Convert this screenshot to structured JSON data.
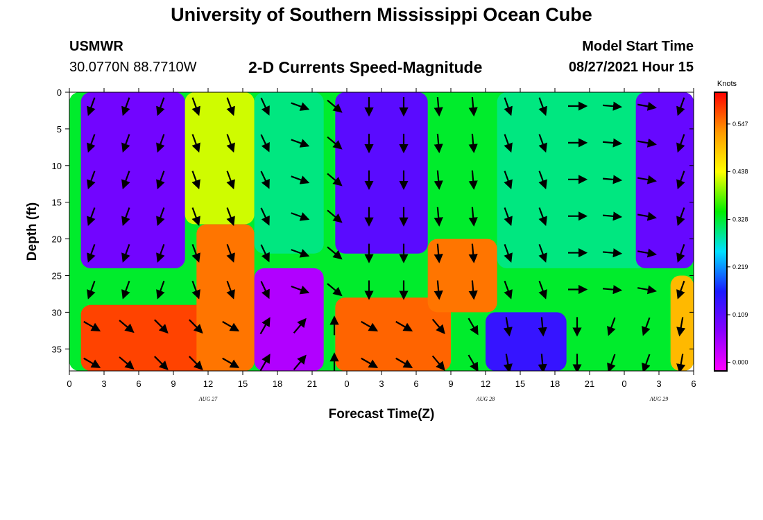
{
  "header": {
    "title": "University of Southern Mississippi Ocean Cube",
    "station_id": "USMWR",
    "coords": "30.0770N  88.7710W",
    "subtitle": "2-D Currents Speed-Magnitude",
    "model_start_label": "Model Start Time",
    "model_start_value": "08/27/2021 Hour 15"
  },
  "footer": {
    "title": "University of Southern Mississippi Ocean Cube"
  },
  "chart_data": {
    "type": "heatmap",
    "xlabel": "Forecast Time(Z)",
    "ylabel": "Depth (ft)",
    "x_range_hours": [
      0,
      54
    ],
    "x_tick_labels": [
      "0",
      "3",
      "6",
      "9",
      "12",
      "15",
      "18",
      "21",
      "0",
      "3",
      "6",
      "9",
      "12",
      "15",
      "18",
      "21",
      "0",
      "3",
      "6"
    ],
    "date_labels": [
      {
        "text": "AUG 27",
        "at_hour": 12
      },
      {
        "text": "AUG 28",
        "at_hour": 36
      },
      {
        "text": "AUG 29",
        "at_hour": 51
      }
    ],
    "y_range": [
      0,
      38
    ],
    "y_ticks": [
      0,
      5,
      10,
      15,
      20,
      25,
      30,
      35
    ],
    "y_inverted": true,
    "colorbar": {
      "unit": "Knots",
      "range": [
        -0.02,
        0.62
      ],
      "ticks": [
        "0.547",
        "0.438",
        "0.328",
        "0.219",
        "0.109",
        "0.000"
      ],
      "tick_values": [
        0.547,
        0.438,
        0.328,
        0.219,
        0.109,
        0.0
      ],
      "colors": [
        "#ff00ff",
        "#8800ff",
        "#1a1aff",
        "#00e0ff",
        "#00ee00",
        "#ffff00",
        "#ff9900",
        "#ff0000"
      ]
    },
    "speed_regions": [
      {
        "hours": [
          0,
          54
        ],
        "depth": [
          0,
          38
        ],
        "speed": 0.33
      },
      {
        "hours": [
          1,
          10
        ],
        "depth": [
          0,
          24
        ],
        "speed": 0.09
      },
      {
        "hours": [
          1,
          16
        ],
        "depth": [
          29,
          38
        ],
        "speed": 0.58
      },
      {
        "hours": [
          11,
          16
        ],
        "depth": [
          18,
          38
        ],
        "speed": 0.55
      },
      {
        "hours": [
          10,
          16
        ],
        "depth": [
          0,
          18
        ],
        "speed": 0.42
      },
      {
        "hours": [
          16,
          22
        ],
        "depth": [
          24,
          38
        ],
        "speed": 0.04
      },
      {
        "hours": [
          16,
          22
        ],
        "depth": [
          0,
          22
        ],
        "speed": 0.3
      },
      {
        "hours": [
          23,
          31
        ],
        "depth": [
          0,
          22
        ],
        "speed": 0.11
      },
      {
        "hours": [
          23,
          33
        ],
        "depth": [
          28,
          38
        ],
        "speed": 0.56
      },
      {
        "hours": [
          31,
          37
        ],
        "depth": [
          20,
          30
        ],
        "speed": 0.55
      },
      {
        "hours": [
          36,
          43
        ],
        "depth": [
          30,
          38
        ],
        "speed": 0.14
      },
      {
        "hours": [
          37,
          50
        ],
        "depth": [
          0,
          24
        ],
        "speed": 0.3
      },
      {
        "hours": [
          49,
          54
        ],
        "depth": [
          0,
          24
        ],
        "speed": 0.1
      },
      {
        "hours": [
          52,
          54
        ],
        "depth": [
          25,
          38
        ],
        "speed": 0.5
      }
    ],
    "vector_rows_depth": [
      0,
      5,
      10,
      15,
      20,
      25,
      30,
      35,
      38
    ],
    "vector_columns_hours": [
      3,
      6,
      9,
      12,
      15,
      18,
      21,
      24,
      27,
      30,
      33,
      36,
      39,
      42,
      45,
      48,
      51,
      54
    ],
    "vector_directions_deg": [
      200,
      200,
      200,
      160,
      160,
      155,
      110,
      130,
      180,
      180,
      175,
      175,
      160,
      160,
      90,
      95,
      100,
      200
    ],
    "vector_direction_bottom_deg": [
      120,
      130,
      135,
      135,
      120,
      30,
      40,
      0,
      120,
      120,
      140,
      150,
      170,
      175,
      180,
      200,
      200,
      190
    ]
  }
}
